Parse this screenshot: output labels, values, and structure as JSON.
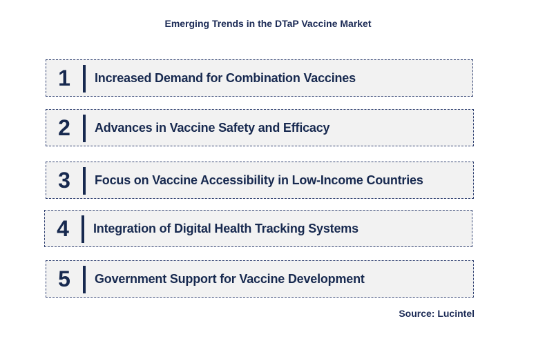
{
  "title": "Emerging Trends in the DTaP Vaccine Market",
  "trends": [
    {
      "number": "1",
      "label": "Increased Demand for Combination Vaccines"
    },
    {
      "number": "2",
      "label": "Advances in Vaccine Safety and Efficacy"
    },
    {
      "number": "3",
      "label": "Focus on Vaccine Accessibility in Low-Income Countries"
    },
    {
      "number": "4",
      "label": "Integration of Digital Health Tracking Systems"
    },
    {
      "number": "5",
      "label": "Government Support for Vaccine Development"
    }
  ],
  "source": "Source: Lucintel",
  "colors": {
    "text": "#17294f",
    "box_background": "#f2f2f2",
    "border": "#2e3f70"
  }
}
